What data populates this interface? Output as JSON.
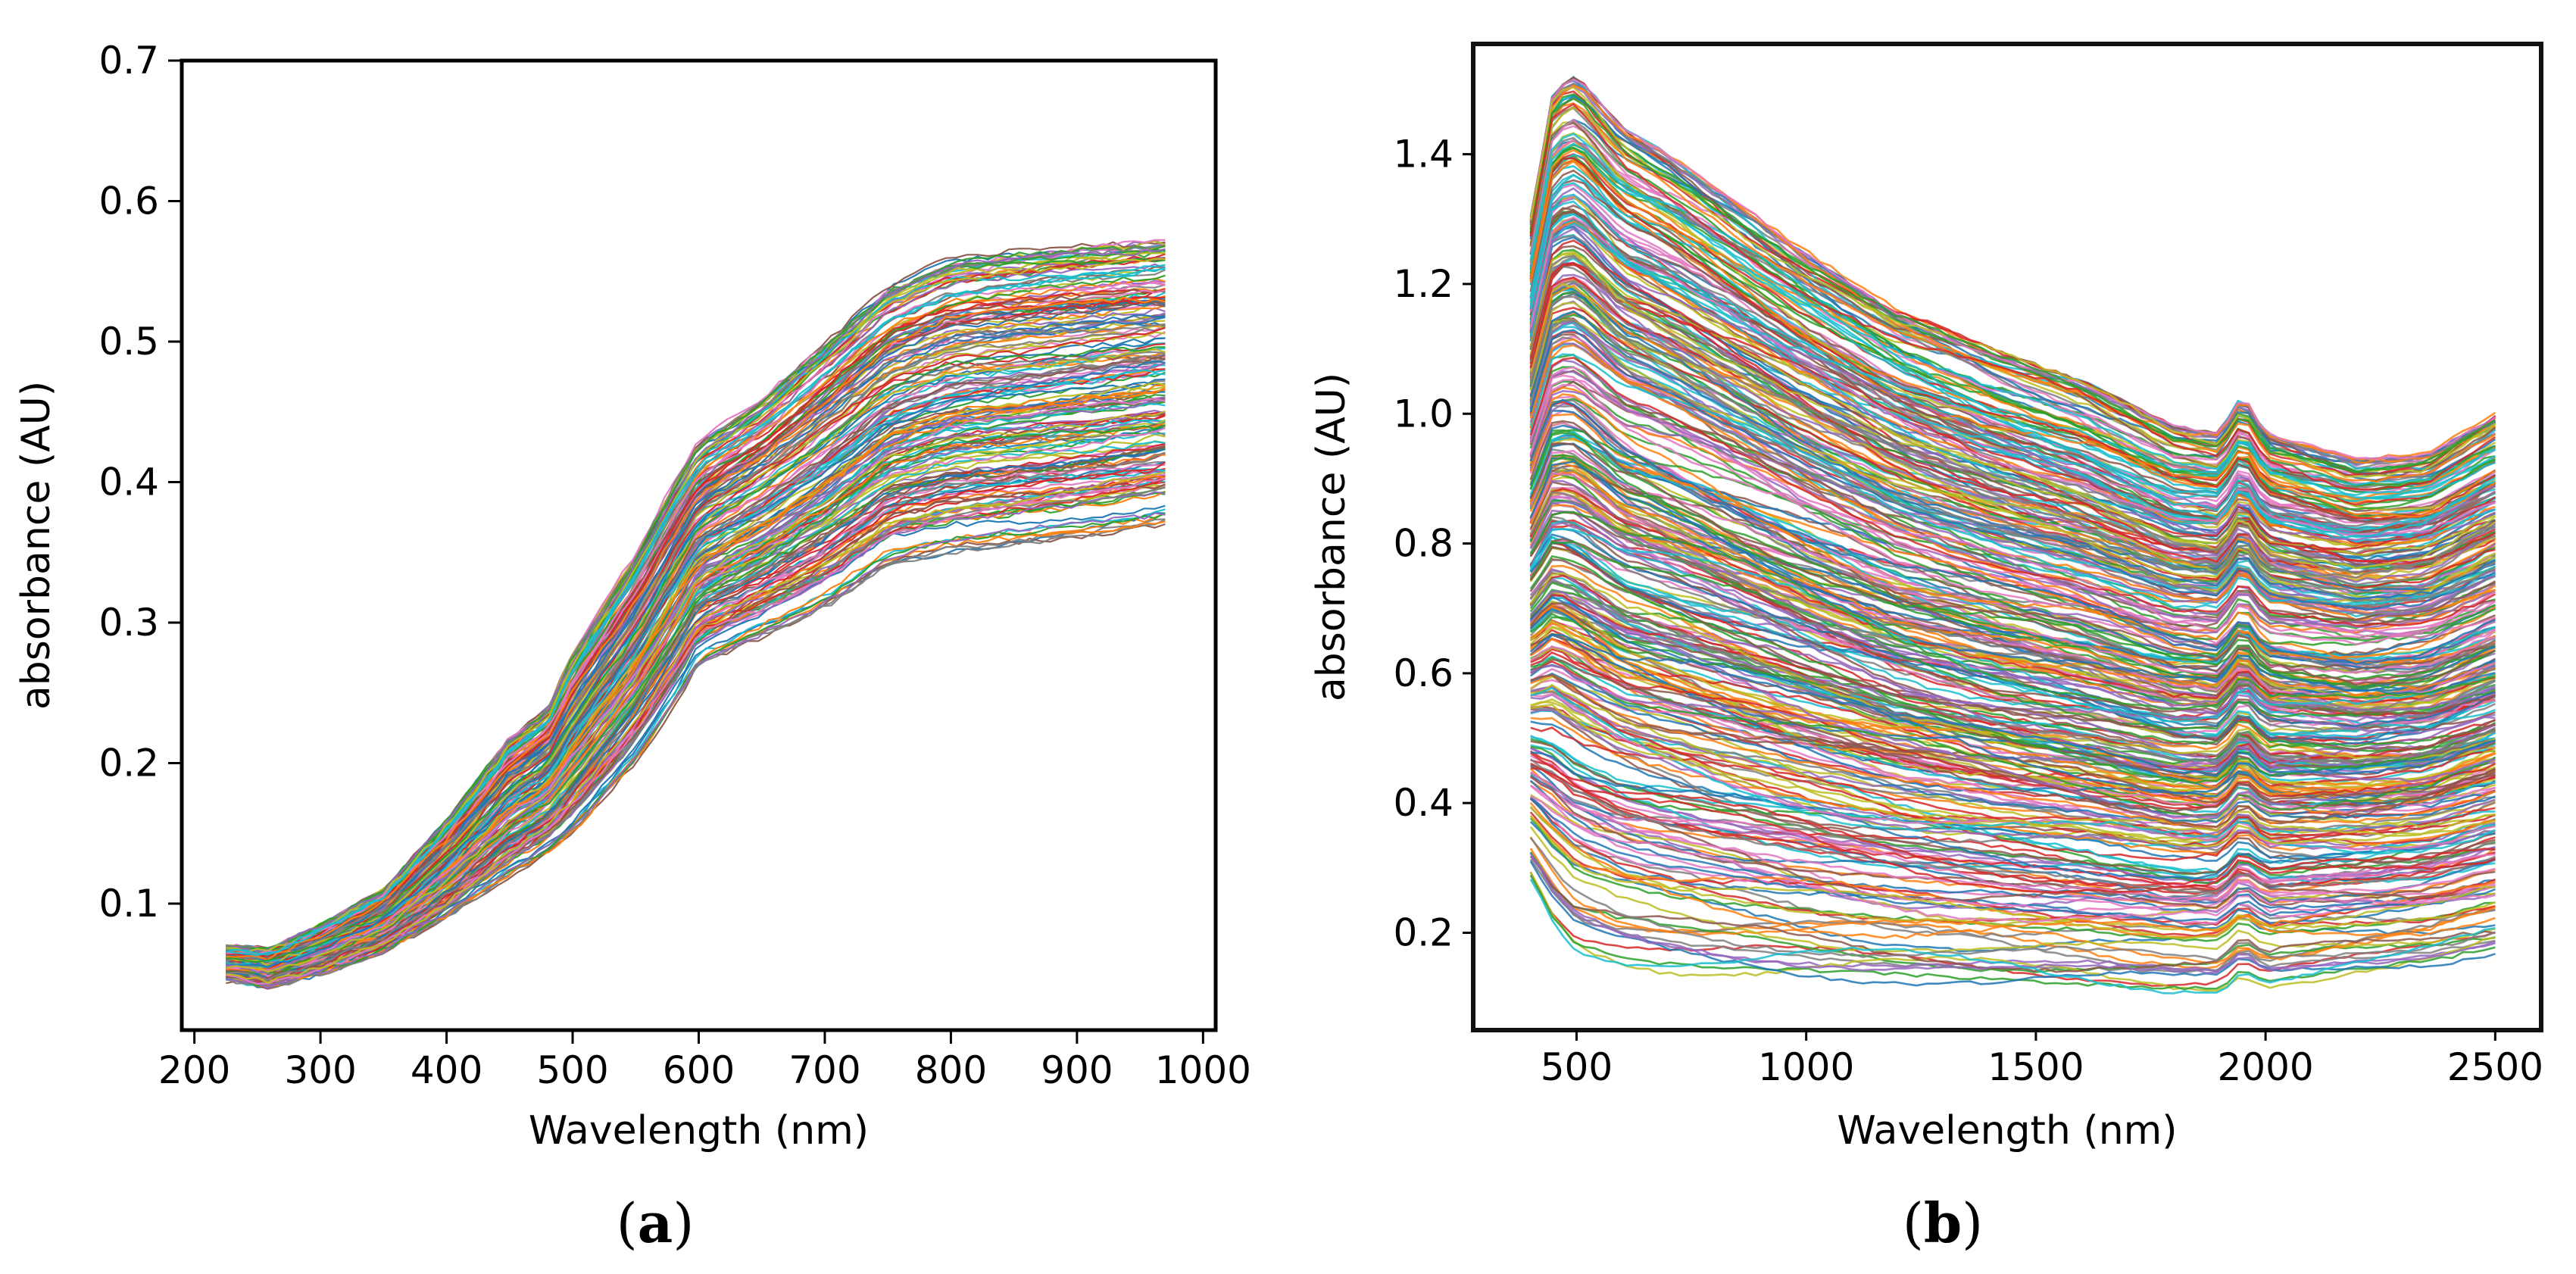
{
  "chart_data": [
    {
      "panel": "a",
      "caption_open": "(",
      "caption_letter": "a",
      "caption_close": ")",
      "type": "line",
      "title": "",
      "xlabel": "Wavelength (nm)",
      "ylabel": "absorbance (AU)",
      "xlim": [
        190,
        1010
      ],
      "ylim": [
        0.01,
        0.7
      ],
      "xticks": [
        200,
        300,
        400,
        500,
        600,
        700,
        800,
        900,
        1000
      ],
      "yticks": [
        0.1,
        0.2,
        0.3,
        0.4,
        0.5,
        0.6,
        0.7
      ],
      "x_range": [
        225,
        970
      ],
      "series_count_estimate": 200,
      "envelope": {
        "x": [
          225,
          260,
          300,
          350,
          400,
          450,
          480,
          500,
          550,
          580,
          600,
          650,
          700,
          750,
          800,
          850,
          900,
          970
        ],
        "upper": [
          0.07,
          0.068,
          0.085,
          0.11,
          0.16,
          0.22,
          0.24,
          0.28,
          0.35,
          0.4,
          0.43,
          0.46,
          0.5,
          0.54,
          0.56,
          0.565,
          0.57,
          0.575
        ],
        "lower": [
          0.045,
          0.04,
          0.05,
          0.065,
          0.09,
          0.12,
          0.135,
          0.15,
          0.2,
          0.24,
          0.27,
          0.29,
          0.31,
          0.34,
          0.35,
          0.355,
          0.36,
          0.37
        ]
      },
      "grid": false,
      "legend": "none"
    },
    {
      "panel": "b",
      "caption_open": "(",
      "caption_letter": "b",
      "caption_close": ")",
      "type": "line",
      "title": "",
      "xlabel": "Wavelength (nm)",
      "ylabel": "absorbance (AU)",
      "xlim": [
        275,
        2600
      ],
      "ylim": [
        0.05,
        1.57
      ],
      "xticks": [
        500,
        1000,
        1500,
        2000,
        2500
      ],
      "yticks": [
        0.2,
        0.4,
        0.6,
        0.8,
        1.0,
        1.2,
        1.4
      ],
      "x_range": [
        400,
        2500
      ],
      "series_count_estimate": 400,
      "envelope": {
        "x": [
          400,
          450,
          500,
          600,
          700,
          800,
          1000,
          1200,
          1400,
          1600,
          1800,
          1900,
          1950,
          2000,
          2200,
          2350,
          2500
        ],
        "upper": [
          1.3,
          1.5,
          1.52,
          1.44,
          1.4,
          1.35,
          1.25,
          1.16,
          1.1,
          1.05,
          0.98,
          0.97,
          1.03,
          0.97,
          0.93,
          0.94,
          1.0
        ],
        "lower": [
          0.27,
          0.2,
          0.16,
          0.14,
          0.13,
          0.125,
          0.12,
          0.115,
          0.11,
          0.105,
          0.1,
          0.1,
          0.13,
          0.11,
          0.13,
          0.14,
          0.16
        ]
      },
      "grid": false,
      "legend": "none"
    }
  ],
  "palette": [
    "#1f77b4",
    "#ff7f0e",
    "#2ca02c",
    "#d62728",
    "#9467bd",
    "#8c564b",
    "#e377c2",
    "#7f7f7f",
    "#bcbd22",
    "#17becf"
  ]
}
